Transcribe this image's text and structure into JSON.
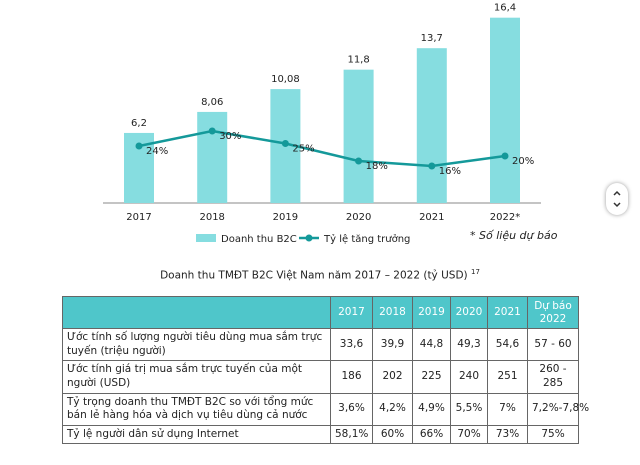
{
  "chart_data": {
    "type": "bar",
    "categories": [
      "2017",
      "2018",
      "2019",
      "2020",
      "2021",
      "2022*"
    ],
    "series": [
      {
        "name": "Doanh thu B2C",
        "type": "bar",
        "color": "#86dde0",
        "values": [
          6.2,
          8.06,
          10.08,
          11.8,
          13.7,
          16.4
        ],
        "value_labels": [
          "6,2",
          "8,06",
          "10,08",
          "11,8",
          "13,7",
          "16,4"
        ]
      },
      {
        "name": "Tỷ lệ tăng trưởng",
        "type": "line",
        "color": "#14999a",
        "values": [
          24,
          30,
          25,
          18,
          16,
          20
        ],
        "value_labels": [
          "24%",
          "30%",
          "25%",
          "18%",
          "16%",
          "20%"
        ]
      }
    ],
    "note": "* Số liệu dự báo"
  },
  "caption": {
    "text": "Doanh thu TMĐT B2C Việt Nam năm 2017 – 2022 (tỷ USD)",
    "ref": "17"
  },
  "table": {
    "header": [
      "",
      "2017",
      "2018",
      "2019",
      "2020",
      "2021",
      "Dự báo 2022"
    ],
    "rows": [
      [
        "Ước tính số lượng người tiêu dùng mua sắm trực tuyến (triệu người)",
        "33,6",
        "39,9",
        "44,8",
        "49,3",
        "54,6",
        "57 - 60"
      ],
      [
        "Ước tính giá trị mua sắm trực tuyến của một người (USD)",
        "186",
        "202",
        "225",
        "240",
        "251",
        "260 - 285"
      ],
      [
        "Tỷ trọng doanh thu TMĐT B2C so với tổng mức bán lẻ hàng hóa và dịch vụ tiêu dùng cả nước",
        "3,6%",
        "4,2%",
        "4,9%",
        "5,5%",
        "7%",
        "7,2%-7,8%"
      ],
      [
        "Tỷ lệ người dân sử dụng Internet",
        "58,1%",
        "60%",
        "66%",
        "70%",
        "73%",
        "75%"
      ]
    ]
  }
}
